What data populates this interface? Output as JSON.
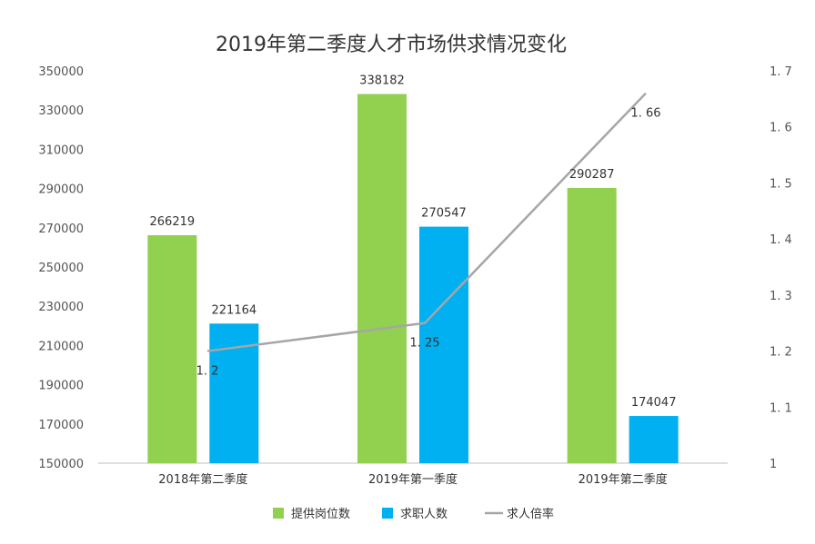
{
  "chart_data": {
    "type": "bar",
    "title": "2019年第二季度人才市场供求情况变化",
    "categories": [
      "2018年第二季度",
      "2019年第一季度",
      "2019年第二季度"
    ],
    "series": [
      {
        "name": "提供岗位数",
        "type": "bar",
        "axis": "left",
        "color": "#92D050",
        "values": [
          266219,
          338182,
          290287
        ],
        "labels": [
          "266219",
          "338182",
          "290287"
        ]
      },
      {
        "name": "求职人数",
        "type": "bar",
        "axis": "left",
        "color": "#00B0F0",
        "values": [
          221164,
          270547,
          174047
        ],
        "labels": [
          "221164",
          "270547",
          "174047"
        ]
      },
      {
        "name": "求人倍率",
        "type": "line",
        "axis": "right",
        "color": "#A6A6A6",
        "values": [
          1.2,
          1.25,
          1.66
        ],
        "labels": [
          "1. 2",
          "1. 25",
          "1. 66"
        ]
      }
    ],
    "y_left": {
      "min": 150000,
      "max": 350000,
      "ticks": [
        "150000",
        "170000",
        "190000",
        "210000",
        "230000",
        "250000",
        "270000",
        "290000",
        "310000",
        "330000",
        "350000"
      ]
    },
    "y_right": {
      "min": 1,
      "max": 1.7,
      "ticks": [
        "1",
        "1. 1",
        "1. 2",
        "1. 3",
        "1. 4",
        "1. 5",
        "1. 6",
        "1. 7"
      ]
    },
    "grid": false,
    "legend_position": "bottom"
  }
}
